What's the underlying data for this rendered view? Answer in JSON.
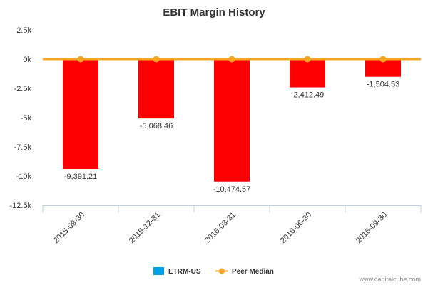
{
  "chart_data": {
    "type": "bar",
    "title": "EBIT Margin History",
    "categories": [
      "2015-09-30",
      "2015-12-31",
      "2016-03-31",
      "2016-06-30",
      "2016-09-30"
    ],
    "series": [
      {
        "name": "ETRM-US",
        "type": "bar",
        "values": [
          -9391.21,
          -5068.46,
          -10474.57,
          -2412.49,
          -1504.53
        ],
        "labels": [
          "-9,391.21",
          "-5,068.46",
          "-10,474.57",
          "-2,412.49",
          "-1,504.53"
        ],
        "color": "#ff0000",
        "legend_color": "#00a2e8"
      },
      {
        "name": "Peer Median",
        "type": "line",
        "values": [
          0,
          0,
          0,
          0,
          0
        ],
        "color": "#f5a623"
      }
    ],
    "yticks": [
      2500,
      0,
      -2500,
      -5000,
      -7500,
      -10000,
      -12500
    ],
    "ytick_labels": [
      "2.5k",
      "0k",
      "-2.5k",
      "-5k",
      "-7.5k",
      "-10k",
      "-12.5k"
    ],
    "ylim": [
      -12500,
      2500
    ],
    "grid": false,
    "legend": "bottom-center"
  },
  "credit": "www.capitalcube.com"
}
